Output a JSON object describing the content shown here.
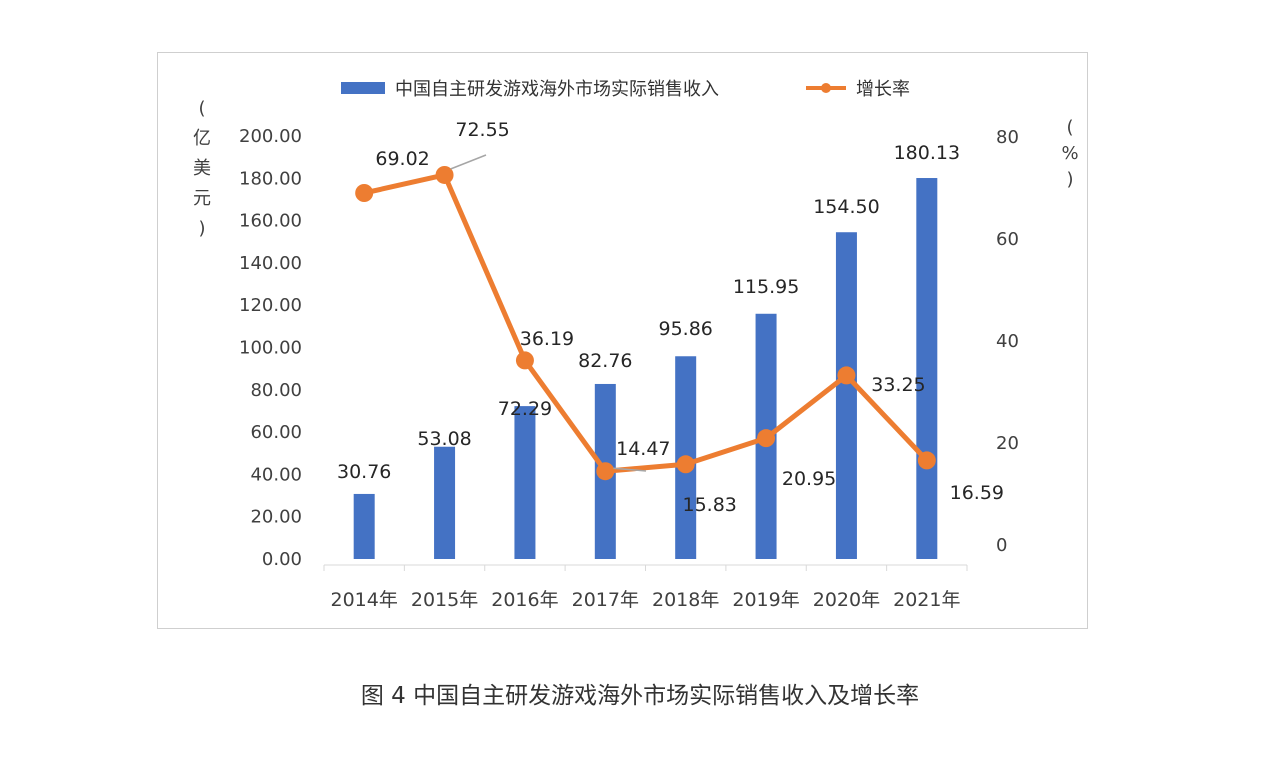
{
  "chart_data": {
    "type": "bar+line",
    "categories": [
      "2014年",
      "2015年",
      "2016年",
      "2017年",
      "2018年",
      "2019年",
      "2020年",
      "2021年"
    ],
    "series": [
      {
        "name": "中国自主研发游戏海外市场实际销售收入",
        "type": "bar",
        "axis": "left",
        "color": "#4472c4",
        "values": [
          30.76,
          53.08,
          72.29,
          82.76,
          95.86,
          115.95,
          154.5,
          180.13
        ],
        "labels": [
          "30.76",
          "53.08",
          "72.29",
          "82.76",
          "95.86",
          "115.95",
          "154.50",
          "180.13"
        ]
      },
      {
        "name": "增长率",
        "type": "line",
        "axis": "right",
        "color": "#ed7d31",
        "values": [
          69.02,
          72.55,
          36.19,
          14.47,
          15.83,
          20.95,
          33.25,
          16.59
        ],
        "labels": [
          "69.02",
          "72.55",
          "36.19",
          "14.47",
          "15.83",
          "20.95",
          "33.25",
          "16.59"
        ]
      }
    ],
    "y_left": {
      "ylim": [
        0,
        200
      ],
      "ticks": [
        "0.00",
        "20.00",
        "40.00",
        "60.00",
        "80.00",
        "100.00",
        "120.00",
        "140.00",
        "160.00",
        "180.00",
        "200.00"
      ],
      "unit_chars": [
        "(",
        "亿",
        "美",
        "元",
        ")"
      ]
    },
    "y_right": {
      "ylim": [
        0,
        80
      ],
      "ticks": [
        "0",
        "20",
        "40",
        "60",
        "80"
      ],
      "unit_chars": [
        "(",
        "%",
        ")"
      ]
    },
    "legend_position": "top",
    "grid": false
  },
  "caption": "图 4 中国自主研发游戏海外市场实际销售收入及增长率"
}
